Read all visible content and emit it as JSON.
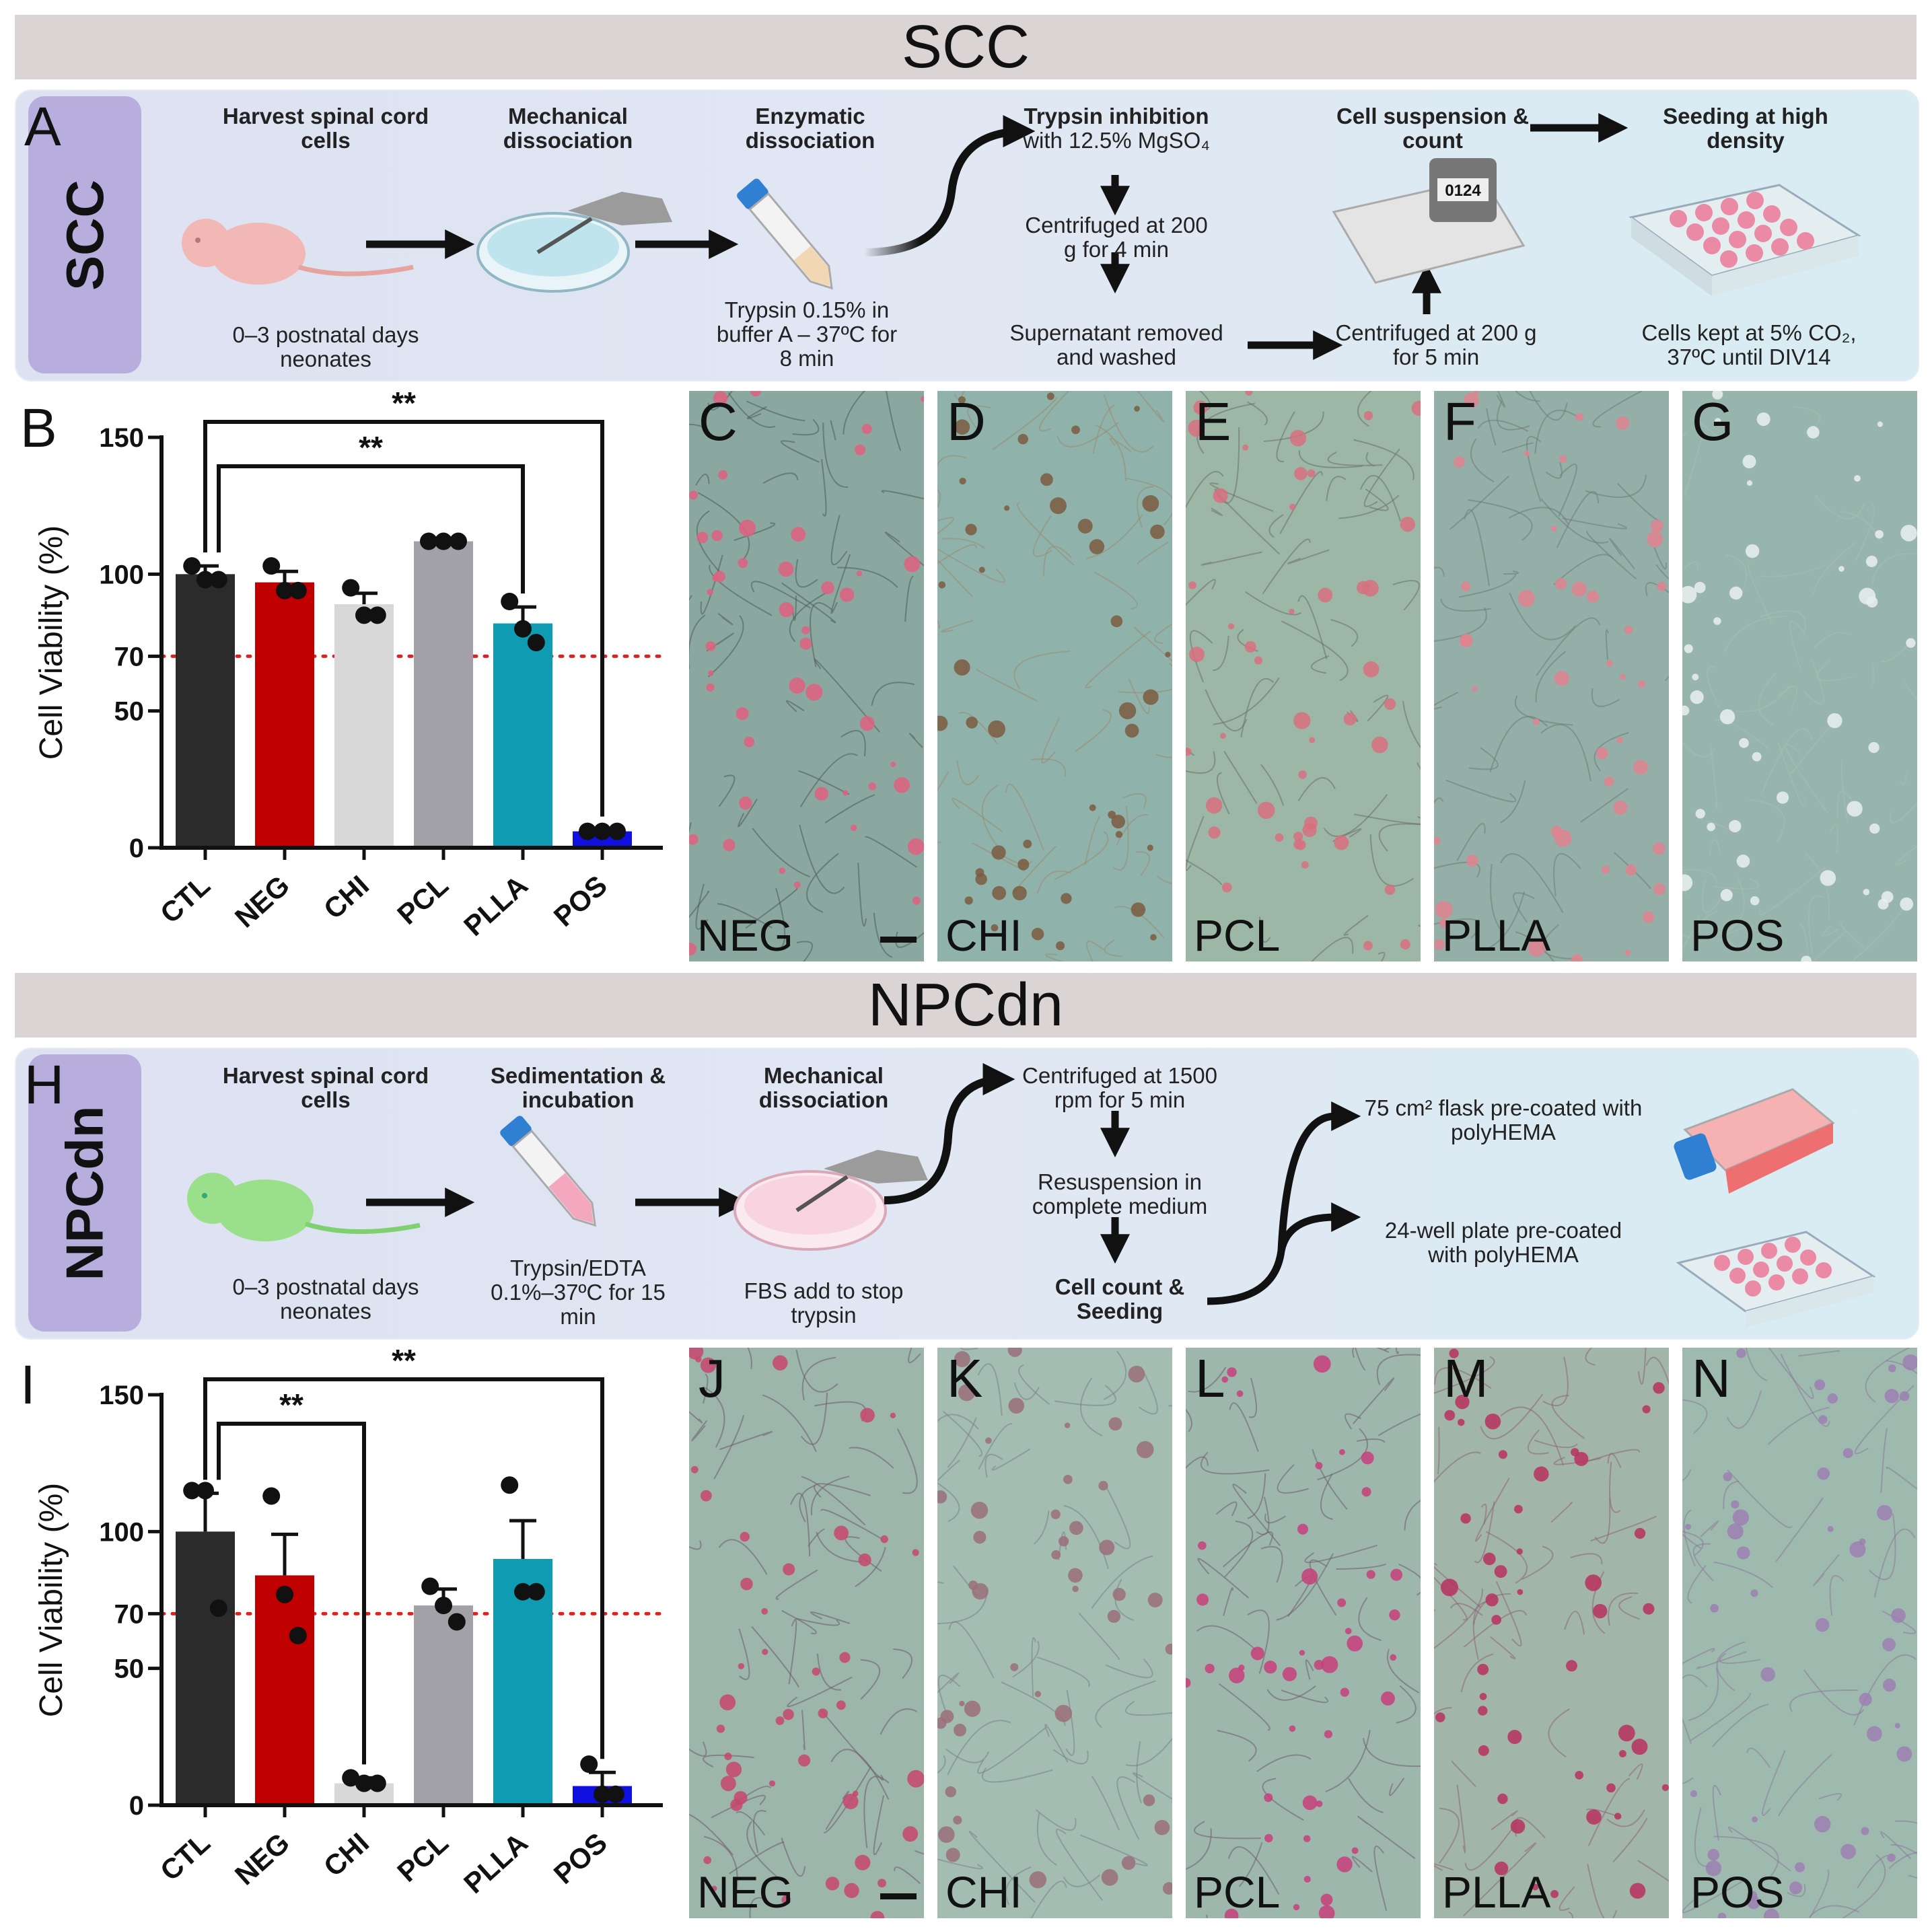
{
  "banners": {
    "top": "SCC",
    "bottom": "NPCdn"
  },
  "panel_a": {
    "letter": "A",
    "side_label": "SCC",
    "steps": {
      "harvest_title": "Harvest spinal cord cells",
      "harvest_note": "0–3 postnatal days neonates",
      "mech_title": "Mechanical dissociation",
      "enz_title": "Enzymatic dissociation",
      "enz_note": "Trypsin 0.15% in buffer A – 37ºC for 8 min",
      "inhib_title": "Trypsin inhibition",
      "inhib_note": "with 12.5% MgSO₄",
      "cent1": "Centrifuged at 200 g for 4 min",
      "super": "Supernatant removed and washed",
      "cent2": "Centrifuged at 200 g for 5 min",
      "susp_title": "Cell suspension & count",
      "counter_digits": "0124",
      "seed_title": "Seeding at high density",
      "seed_note": "Cells kept at 5% CO₂, 37ºC until DIV14"
    }
  },
  "panel_h": {
    "letter": "H",
    "side_label": "NPCdn",
    "steps": {
      "harvest_title": "Harvest spinal cord cells",
      "harvest_note": "0–3 postnatal days neonates",
      "sed_title": "Sedimentation & incubation",
      "sed_note": "Trypsin/EDTA 0.1%–37ºC for 15 min",
      "mech_title": "Mechanical dissociation",
      "mech_note": "FBS add to stop trypsin",
      "cent": "Centrifuged at 1500 rpm for 5 min",
      "resusp": "Resuspension in complete medium",
      "count": "Cell count & Seeding",
      "flask": "75 cm² flask pre-coated with polyHEMA",
      "plate": "24-well plate pre-coated with polyHEMA"
    }
  },
  "colors": {
    "CTL": "#2b2b2b",
    "NEG": "#c00000",
    "CHI": "#d8d8d8",
    "PCL": "#a3a1a8",
    "PLLA": "#0f9cb3",
    "POS": "#1010e0",
    "threshold": "#e0201c"
  },
  "chart_data": [
    {
      "type": "bar",
      "panel": "B",
      "ylabel": "Cell Viability (%)",
      "categories": [
        "CTL",
        "NEG",
        "CHI",
        "PCL",
        "PLLA",
        "POS"
      ],
      "values": [
        100,
        97,
        89,
        112,
        82,
        6
      ],
      "sem": [
        3,
        4,
        4,
        0.5,
        6,
        0.5
      ],
      "points": [
        [
          103,
          98,
          98
        ],
        [
          103,
          94,
          94
        ],
        [
          95,
          85,
          85
        ],
        [
          112,
          112,
          112
        ],
        [
          90,
          80,
          75
        ],
        [
          6,
          6,
          6
        ]
      ],
      "yticks": [
        0,
        50,
        70,
        100,
        150
      ],
      "ylim": [
        0,
        150
      ],
      "threshold": 70,
      "significance": [
        {
          "from": "CTL",
          "to": "PLLA",
          "label": "**"
        },
        {
          "from": "CTL",
          "to": "POS",
          "label": "**"
        }
      ]
    },
    {
      "type": "bar",
      "panel": "I",
      "ylabel": "Cell Viability (%)",
      "categories": [
        "CTL",
        "NEG",
        "CHI",
        "PCL",
        "PLLA",
        "POS"
      ],
      "values": [
        100,
        84,
        8,
        73,
        90,
        7
      ],
      "sem": [
        14,
        15,
        2,
        6,
        14,
        5
      ],
      "points": [
        [
          115,
          115,
          72
        ],
        [
          113,
          77,
          62
        ],
        [
          10,
          8,
          8
        ],
        [
          80,
          73,
          67
        ],
        [
          117,
          78,
          78
        ],
        [
          15,
          4,
          4
        ]
      ],
      "yticks": [
        0,
        50,
        70,
        100,
        150
      ],
      "ylim": [
        0,
        150
      ],
      "threshold": 70,
      "significance": [
        {
          "from": "CTL",
          "to": "CHI",
          "label": "**"
        },
        {
          "from": "CTL",
          "to": "POS",
          "label": "**"
        }
      ]
    }
  ],
  "micrographs_top": [
    {
      "letter": "C",
      "caption": "NEG"
    },
    {
      "letter": "D",
      "caption": "CHI"
    },
    {
      "letter": "E",
      "caption": "PCL"
    },
    {
      "letter": "F",
      "caption": "PLLA"
    },
    {
      "letter": "G",
      "caption": "POS"
    }
  ],
  "micrographs_bottom": [
    {
      "letter": "J",
      "caption": "NEG"
    },
    {
      "letter": "K",
      "caption": "CHI"
    },
    {
      "letter": "L",
      "caption": "PCL"
    },
    {
      "letter": "M",
      "caption": "PLLA"
    },
    {
      "letter": "N",
      "caption": "POS"
    }
  ]
}
